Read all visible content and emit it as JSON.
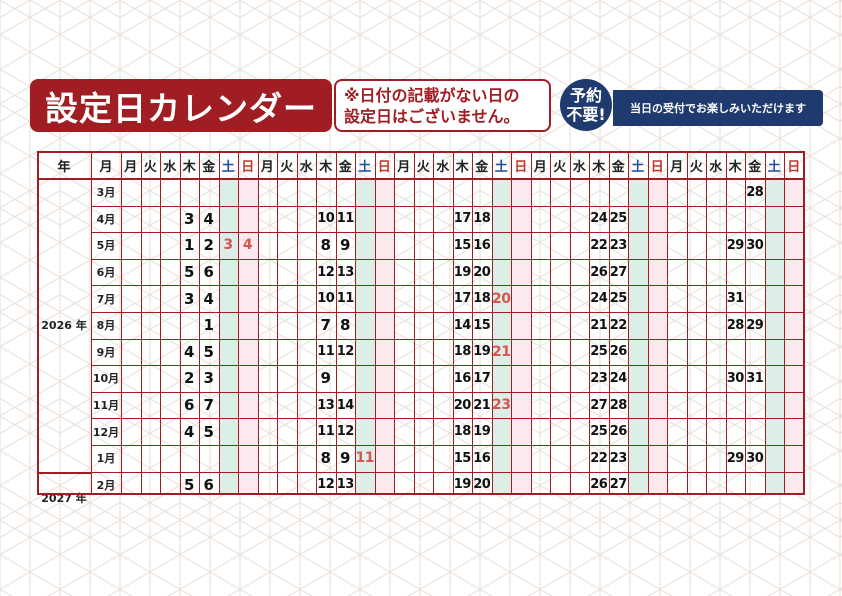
{
  "title": "設定日カレンダー",
  "note_lines": [
    "※日付の記載がない日の",
    "設定日はございません。"
  ],
  "badge_lines": [
    "予約",
    "不要!"
  ],
  "banner": "当日の受付でお楽しみいただけます",
  "colors": {
    "brand_red": "#a01e23",
    "navy": "#1f3a6e",
    "saturday": "#1d4ea3",
    "sunday": "#c0392b",
    "holiday": "#d9534f"
  },
  "calendar": {
    "year_header": "年",
    "month_header": "月",
    "weekday_headers": [
      "月",
      "火",
      "水",
      "木",
      "金",
      "土",
      "日",
      "月",
      "火",
      "水",
      "木",
      "金",
      "土",
      "日",
      "月",
      "火",
      "水",
      "木",
      "金",
      "土",
      "日",
      "月",
      "火",
      "水",
      "木",
      "金",
      "土",
      "日",
      "月",
      "火",
      "水",
      "木",
      "金",
      "土",
      "日"
    ],
    "years": [
      {
        "label": "2026 年",
        "rows": 11
      },
      {
        "label": "2027 年",
        "rows": 2
      }
    ],
    "rows": [
      {
        "month": "3月",
        "days": [
          {
            "col": 33,
            "v": "28"
          }
        ]
      },
      {
        "month": "4月",
        "days": [
          {
            "col": 4,
            "v": "3"
          },
          {
            "col": 5,
            "v": "4"
          },
          {
            "col": 11,
            "v": "10"
          },
          {
            "col": 12,
            "v": "11"
          },
          {
            "col": 18,
            "v": "17"
          },
          {
            "col": 19,
            "v": "18"
          },
          {
            "col": 25,
            "v": "24"
          },
          {
            "col": 26,
            "v": "25"
          }
        ]
      },
      {
        "month": "5月",
        "days": [
          {
            "col": 4,
            "v": "1"
          },
          {
            "col": 5,
            "v": "2"
          },
          {
            "col": 6,
            "v": "3",
            "h": true
          },
          {
            "col": 7,
            "v": "4",
            "h": true
          },
          {
            "col": 11,
            "v": "8"
          },
          {
            "col": 12,
            "v": "9"
          },
          {
            "col": 18,
            "v": "15"
          },
          {
            "col": 19,
            "v": "16"
          },
          {
            "col": 25,
            "v": "22"
          },
          {
            "col": 26,
            "v": "23"
          },
          {
            "col": 32,
            "v": "29"
          },
          {
            "col": 33,
            "v": "30"
          }
        ]
      },
      {
        "month": "6月",
        "days": [
          {
            "col": 4,
            "v": "5"
          },
          {
            "col": 5,
            "v": "6"
          },
          {
            "col": 11,
            "v": "12"
          },
          {
            "col": 12,
            "v": "13"
          },
          {
            "col": 18,
            "v": "19"
          },
          {
            "col": 19,
            "v": "20"
          },
          {
            "col": 25,
            "v": "26"
          },
          {
            "col": 26,
            "v": "27"
          }
        ]
      },
      {
        "month": "7月",
        "days": [
          {
            "col": 4,
            "v": "3"
          },
          {
            "col": 5,
            "v": "4"
          },
          {
            "col": 11,
            "v": "10"
          },
          {
            "col": 12,
            "v": "11"
          },
          {
            "col": 18,
            "v": "17"
          },
          {
            "col": 19,
            "v": "18"
          },
          {
            "col": 20,
            "v": "20",
            "h": true
          },
          {
            "col": 25,
            "v": "24"
          },
          {
            "col": 26,
            "v": "25"
          },
          {
            "col": 32,
            "v": "31"
          }
        ]
      },
      {
        "month": "8月",
        "days": [
          {
            "col": 5,
            "v": "1"
          },
          {
            "col": 11,
            "v": "7"
          },
          {
            "col": 12,
            "v": "8"
          },
          {
            "col": 18,
            "v": "14"
          },
          {
            "col": 19,
            "v": "15"
          },
          {
            "col": 25,
            "v": "21"
          },
          {
            "col": 26,
            "v": "22"
          },
          {
            "col": 32,
            "v": "28"
          },
          {
            "col": 33,
            "v": "29"
          }
        ]
      },
      {
        "month": "9月",
        "days": [
          {
            "col": 4,
            "v": "4"
          },
          {
            "col": 5,
            "v": "5"
          },
          {
            "col": 11,
            "v": "11"
          },
          {
            "col": 12,
            "v": "12"
          },
          {
            "col": 18,
            "v": "18"
          },
          {
            "col": 19,
            "v": "19"
          },
          {
            "col": 20,
            "v": "21",
            "h": true
          },
          {
            "col": 25,
            "v": "25"
          },
          {
            "col": 26,
            "v": "26"
          }
        ]
      },
      {
        "month": "10月",
        "days": [
          {
            "col": 4,
            "v": "2"
          },
          {
            "col": 5,
            "v": "3"
          },
          {
            "col": 11,
            "v": "9"
          },
          {
            "col": 18,
            "v": "16"
          },
          {
            "col": 19,
            "v": "17"
          },
          {
            "col": 25,
            "v": "23"
          },
          {
            "col": 26,
            "v": "24"
          },
          {
            "col": 32,
            "v": "30"
          },
          {
            "col": 33,
            "v": "31"
          }
        ]
      },
      {
        "month": "11月",
        "days": [
          {
            "col": 4,
            "v": "6"
          },
          {
            "col": 5,
            "v": "7"
          },
          {
            "col": 11,
            "v": "13"
          },
          {
            "col": 12,
            "v": "14"
          },
          {
            "col": 18,
            "v": "20"
          },
          {
            "col": 19,
            "v": "21"
          },
          {
            "col": 20,
            "v": "23",
            "h": true
          },
          {
            "col": 25,
            "v": "27"
          },
          {
            "col": 26,
            "v": "28"
          }
        ]
      },
      {
        "month": "12月",
        "days": [
          {
            "col": 4,
            "v": "4"
          },
          {
            "col": 5,
            "v": "5"
          },
          {
            "col": 11,
            "v": "11"
          },
          {
            "col": 12,
            "v": "12"
          },
          {
            "col": 18,
            "v": "18"
          },
          {
            "col": 19,
            "v": "19"
          },
          {
            "col": 25,
            "v": "25"
          },
          {
            "col": 26,
            "v": "26"
          }
        ]
      },
      {
        "month": "1月",
        "days": [
          {
            "col": 11,
            "v": "8"
          },
          {
            "col": 12,
            "v": "9"
          },
          {
            "col": 13,
            "v": "11",
            "h": true
          },
          {
            "col": 18,
            "v": "15"
          },
          {
            "col": 19,
            "v": "16"
          },
          {
            "col": 25,
            "v": "22"
          },
          {
            "col": 26,
            "v": "23"
          },
          {
            "col": 32,
            "v": "29"
          },
          {
            "col": 33,
            "v": "30"
          }
        ]
      },
      {
        "month": "2月",
        "days": [
          {
            "col": 4,
            "v": "5"
          },
          {
            "col": 5,
            "v": "6"
          },
          {
            "col": 11,
            "v": "12"
          },
          {
            "col": 12,
            "v": "13"
          },
          {
            "col": 18,
            "v": "19"
          },
          {
            "col": 19,
            "v": "20"
          },
          {
            "col": 25,
            "v": "26"
          },
          {
            "col": 26,
            "v": "27"
          }
        ]
      }
    ]
  }
}
